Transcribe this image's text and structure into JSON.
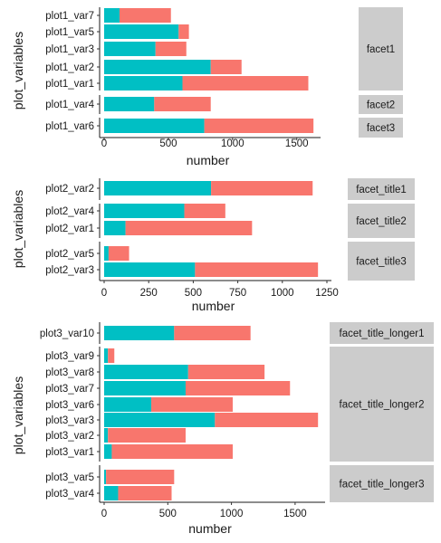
{
  "chart_data": [
    {
      "type": "bar",
      "stacked": true,
      "orientation": "horizontal",
      "xlabel": "number",
      "ylabel": "plot_variables",
      "xlim": [
        0,
        1650
      ],
      "xticks": [
        0,
        500,
        1000,
        1500
      ],
      "xtick_labels": [
        "0",
        "500",
        "1000",
        "1500"
      ],
      "legend": "none",
      "panels": [
        {
          "facet": "facet1",
          "categories": [
            "plot1_var1",
            "plot1_var2",
            "plot1_var3",
            "plot1_var5",
            "plot1_var7"
          ],
          "series": [
            {
              "color": "#00bfc4",
              "values": [
                610,
                830,
                400,
                580,
                120
              ]
            },
            {
              "color": "#f8766d",
              "values": [
                980,
                240,
                240,
                80,
                400
              ]
            }
          ]
        },
        {
          "facet": "facet2",
          "categories": [
            "plot1_var4"
          ],
          "series": [
            {
              "color": "#00bfc4",
              "values": [
                390
              ]
            },
            {
              "color": "#f8766d",
              "values": [
                440
              ]
            }
          ]
        },
        {
          "facet": "facet3",
          "categories": [
            "plot1_var6"
          ],
          "series": [
            {
              "color": "#00bfc4",
              "values": [
                780
              ]
            },
            {
              "color": "#f8766d",
              "values": [
                850
              ]
            }
          ]
        }
      ]
    },
    {
      "type": "bar",
      "stacked": true,
      "orientation": "horizontal",
      "xlabel": "number",
      "ylabel": "plot_variables",
      "xlim": [
        0,
        1250
      ],
      "xticks": [
        0,
        250,
        500,
        750,
        1000,
        1250
      ],
      "xtick_labels": [
        "0",
        "250",
        "500",
        "750",
        "1000",
        "1250"
      ],
      "legend": "none",
      "panels": [
        {
          "facet": "facet_title1",
          "categories": [
            "plot2_var2"
          ],
          "series": [
            {
              "color": "#00bfc4",
              "values": [
                600
              ]
            },
            {
              "color": "#f8766d",
              "values": [
                570
              ]
            }
          ]
        },
        {
          "facet": "facet_title2",
          "categories": [
            "plot2_var1",
            "plot2_var4"
          ],
          "series": [
            {
              "color": "#00bfc4",
              "values": [
                120,
                450
              ]
            },
            {
              "color": "#f8766d",
              "values": [
                710,
                230
              ]
            }
          ]
        },
        {
          "facet": "facet_title3",
          "categories": [
            "plot2_var3",
            "plot2_var5"
          ],
          "series": [
            {
              "color": "#00bfc4",
              "values": [
                510,
                25
              ]
            },
            {
              "color": "#f8766d",
              "values": [
                690,
                115
              ]
            }
          ]
        }
      ]
    },
    {
      "type": "bar",
      "stacked": true,
      "orientation": "horizontal",
      "xlabel": "number",
      "ylabel": "plot_variables",
      "xlim": [
        0,
        1700
      ],
      "xticks": [
        0,
        500,
        1000,
        1500
      ],
      "xtick_labels": [
        "0",
        "500",
        "1000",
        "1500"
      ],
      "legend": "none",
      "panels": [
        {
          "facet": "facet_title_longer1",
          "categories": [
            "plot3_var10"
          ],
          "series": [
            {
              "color": "#00bfc4",
              "values": [
                550
              ]
            },
            {
              "color": "#f8766d",
              "values": [
                600
              ]
            }
          ]
        },
        {
          "facet": "facet_title_longer2",
          "categories": [
            "plot3_var1",
            "plot3_var2",
            "plot3_var3",
            "plot3_var6",
            "plot3_var7",
            "plot3_var8",
            "plot3_var9"
          ],
          "series": [
            {
              "color": "#00bfc4",
              "values": [
                60,
                30,
                870,
                370,
                640,
                660,
                30
              ]
            },
            {
              "color": "#f8766d",
              "values": [
                950,
                610,
                810,
                640,
                820,
                600,
                50
              ]
            }
          ]
        },
        {
          "facet": "facet_title_longer3",
          "categories": [
            "plot3_var4",
            "plot3_var5"
          ],
          "series": [
            {
              "color": "#00bfc4",
              "values": [
                110,
                15
              ]
            },
            {
              "color": "#f8766d",
              "values": [
                420,
                535
              ]
            }
          ]
        }
      ]
    }
  ]
}
